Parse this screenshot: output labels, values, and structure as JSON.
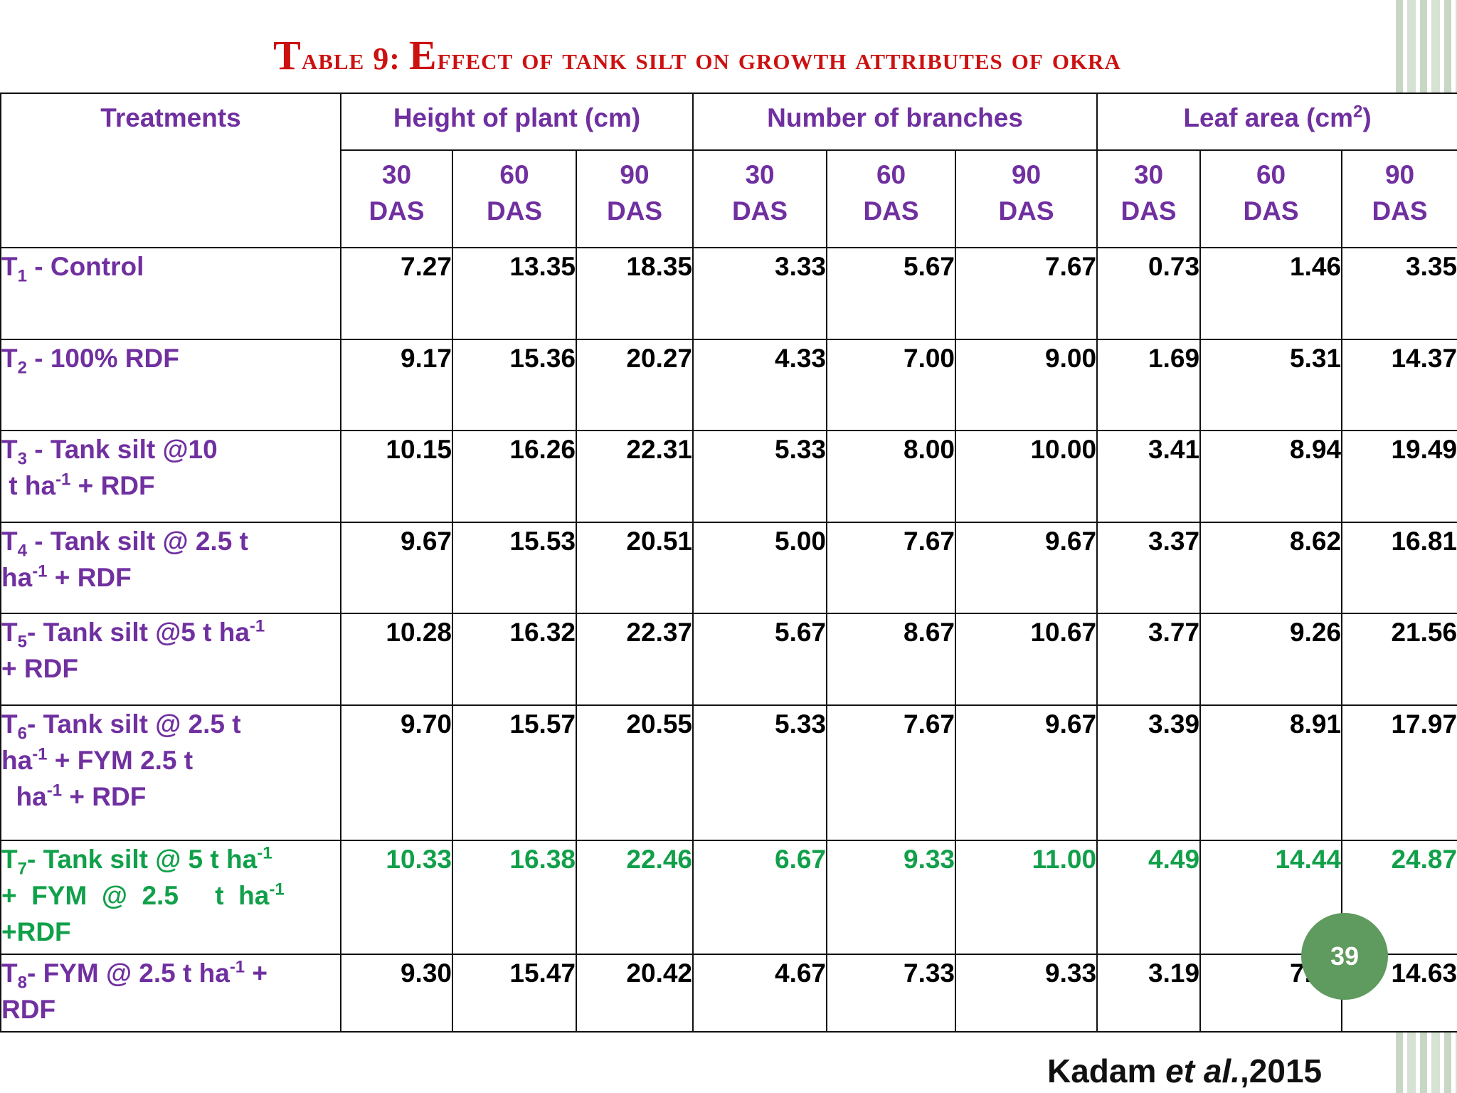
{
  "title": {
    "first_letter": "T",
    "part1": "able 9: ",
    "second_letter": "E",
    "part2": "ffect of tank silt on growth attributes of okra"
  },
  "header": {
    "treatments": "Treatments",
    "height": "Height of  plant (cm)",
    "branches": "Number of branches",
    "leaf_area_prefix": "Leaf area (cm",
    "leaf_area_sup": "2",
    "leaf_area_suffix": ")",
    "day_values": [
      "30",
      "60",
      "90",
      "30",
      "60",
      "90",
      "30",
      "60",
      "90"
    ],
    "das": "DAS"
  },
  "rows": [
    {
      "t": "T",
      "sub": "1",
      "label_a": " -  Control",
      "values": [
        "7.27",
        "13.35",
        "18.35",
        "3.33",
        "5.67",
        "7.67",
        "0.73",
        "1.46",
        "3.35"
      ]
    },
    {
      "t": "T",
      "sub": "2",
      "label_a": " -  100% RDF",
      "values": [
        "9.17",
        "15.36",
        "20.27",
        "4.33",
        "7.00",
        "9.00",
        "1.69",
        "5.31",
        "14.37"
      ]
    },
    {
      "t": "T",
      "sub": "3",
      "label_a": " - Tank silt @10",
      "label_b": " t ha",
      "sup": "-1",
      "label_c": " + RDF",
      "values": [
        "10.15",
        "16.26",
        "22.31",
        "5.33",
        "8.00",
        "10.00",
        "3.41",
        "8.94",
        "19.49"
      ]
    },
    {
      "t": "T",
      "sub": "4",
      "label_a": " - Tank silt @ 2.5 t",
      "label_b": "ha",
      "sup": "-1",
      "label_c": " + RDF",
      "values": [
        "9.67",
        "15.53",
        "20.51",
        "5.00",
        "7.67",
        "9.67",
        "3.37",
        "8.62",
        "16.81"
      ]
    },
    {
      "t": "T",
      "sub": "5",
      "label_a": "- Tank silt @5 t ha",
      "sup": "-1",
      "label_b": "+ RDF",
      "values": [
        "10.28",
        "16.32",
        "22.37",
        "5.67",
        "8.67",
        "10.67",
        "3.77",
        "9.26",
        "21.56"
      ]
    },
    {
      "t": "T",
      "sub": "6",
      "label_a": "- Tank silt @ 2.5 t",
      "label_b": "ha",
      "sup": "-1",
      "label_c": " + FYM 2.5 t",
      "label_d": "  ha",
      "sup2": "-1",
      "label_e": " + RDF",
      "values": [
        "9.70",
        "15.57",
        "20.55",
        "5.33",
        "7.67",
        "9.67",
        "3.39",
        "8.91",
        "17.97"
      ]
    },
    {
      "t": "T",
      "sub": "7",
      "label_a": "- Tank silt @ 5 t ha",
      "sup": "-1",
      "label_b": "+  FYM  @  2.5     t  ha",
      "sup2": "-1",
      "label_c": "+RDF",
      "values": [
        "10.33",
        "16.38",
        "22.46",
        "6.67",
        "9.33",
        "11.00",
        "4.49",
        "14.44",
        "24.87"
      ]
    },
    {
      "t": "T",
      "sub": "8",
      "label_a": "- FYM @ 2.5 t ha",
      "sup": "-1",
      "label_b": " +",
      "label_c": "RDF",
      "values": [
        "9.30",
        "15.47",
        "20.42",
        "4.67",
        "7.33",
        "9.33",
        "3.19",
        "7.30",
        "14.63"
      ]
    }
  ],
  "slide_number": "39",
  "citation": {
    "author": "Kadam ",
    "etal": "et al.",
    "year": ",2015"
  },
  "colors": {
    "title": "#cc1111",
    "header_text": "#7030a0",
    "highlight_row": "#11a04a",
    "badge": "#5f9a5e"
  }
}
